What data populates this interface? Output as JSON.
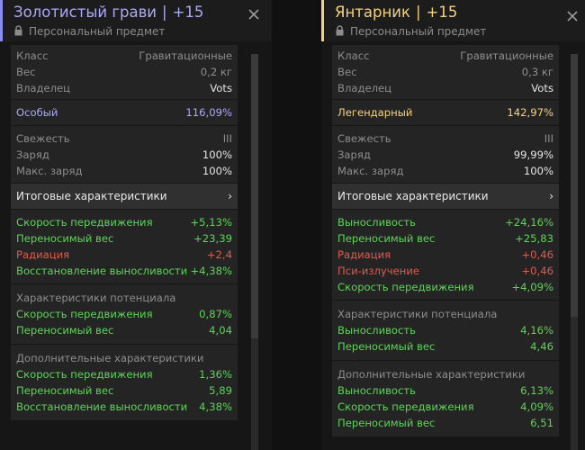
{
  "colors": {
    "left_accent": "#8a8cf0",
    "right_accent": "#f3d37a",
    "green": "#5fd35a",
    "red": "#e05a4e"
  },
  "left": {
    "title": "Золотистый грави",
    "sep": "|",
    "level": "+15",
    "subtitle": "Персональный предмет",
    "info": [
      {
        "label": "Класс",
        "value": "Гравитационные"
      },
      {
        "label": "Вес",
        "value": "0,2 кг"
      },
      {
        "label": "Владелец",
        "value": "Vots"
      }
    ],
    "rarity": {
      "label": "Особый",
      "value": "116,09%"
    },
    "condition": [
      {
        "label": "Свежесть",
        "value": "III"
      },
      {
        "label": "Заряд",
        "value": "100%"
      },
      {
        "label": "Макс. заряд",
        "value": "100%"
      }
    ],
    "totals_label": "Итоговые характеристики",
    "totals_arrow": "›",
    "totals": [
      {
        "label": "Скорость передвижения",
        "value": "+5,13%",
        "color": "green"
      },
      {
        "label": "Переносимый вес",
        "value": "+23,39",
        "color": "green"
      },
      {
        "label": "Радиация",
        "value": "+2,4",
        "color": "red"
      },
      {
        "label": "Восстановление выносливости",
        "value": "+4,38%",
        "color": "green"
      }
    ],
    "potential_title": "Характеристики потенциала",
    "potential": [
      {
        "label": "Скорость передвижения",
        "value": "0,87%"
      },
      {
        "label": "Переносимый вес",
        "value": "4,04"
      }
    ],
    "additional_title": "Дополнительные характеристики",
    "additional": [
      {
        "label": "Скорость передвижения",
        "value": "1,36%"
      },
      {
        "label": "Переносимый вес",
        "value": "5,89"
      },
      {
        "label": "Восстановление выносливости",
        "value": "4,38%"
      }
    ]
  },
  "right": {
    "title": "Янтарник",
    "sep": "|",
    "level": "+15",
    "subtitle": "Персональный предмет",
    "info": [
      {
        "label": "Класс",
        "value": "Гравитационные"
      },
      {
        "label": "Вес",
        "value": "0,3 кг"
      },
      {
        "label": "Владелец",
        "value": "Vots"
      }
    ],
    "rarity": {
      "label": "Легендарный",
      "value": "142,97%"
    },
    "condition": [
      {
        "label": "Свежесть",
        "value": "III"
      },
      {
        "label": "Заряд",
        "value": "99,99%"
      },
      {
        "label": "Макс. заряд",
        "value": "100%"
      }
    ],
    "totals_label": "Итоговые характеристики",
    "totals_arrow": "›",
    "totals": [
      {
        "label": "Выносливость",
        "value": "+24,16%",
        "color": "green"
      },
      {
        "label": "Переносимый вес",
        "value": "+25,83",
        "color": "green"
      },
      {
        "label": "Радиация",
        "value": "+0,46",
        "color": "red"
      },
      {
        "label": "Пси-излучение",
        "value": "+0,46",
        "color": "red"
      },
      {
        "label": "Скорость передвижения",
        "value": "+4,09%",
        "color": "green"
      }
    ],
    "potential_title": "Характеристики потенциала",
    "potential": [
      {
        "label": "Выносливость",
        "value": "4,16%"
      },
      {
        "label": "Переносимый вес",
        "value": "4,46"
      }
    ],
    "additional_title": "Дополнительные характеристики",
    "additional": [
      {
        "label": "Выносливость",
        "value": "6,13%"
      },
      {
        "label": "Скорость передвижения",
        "value": "4,09%"
      },
      {
        "label": "Переносимый вес",
        "value": "6,51"
      }
    ]
  }
}
